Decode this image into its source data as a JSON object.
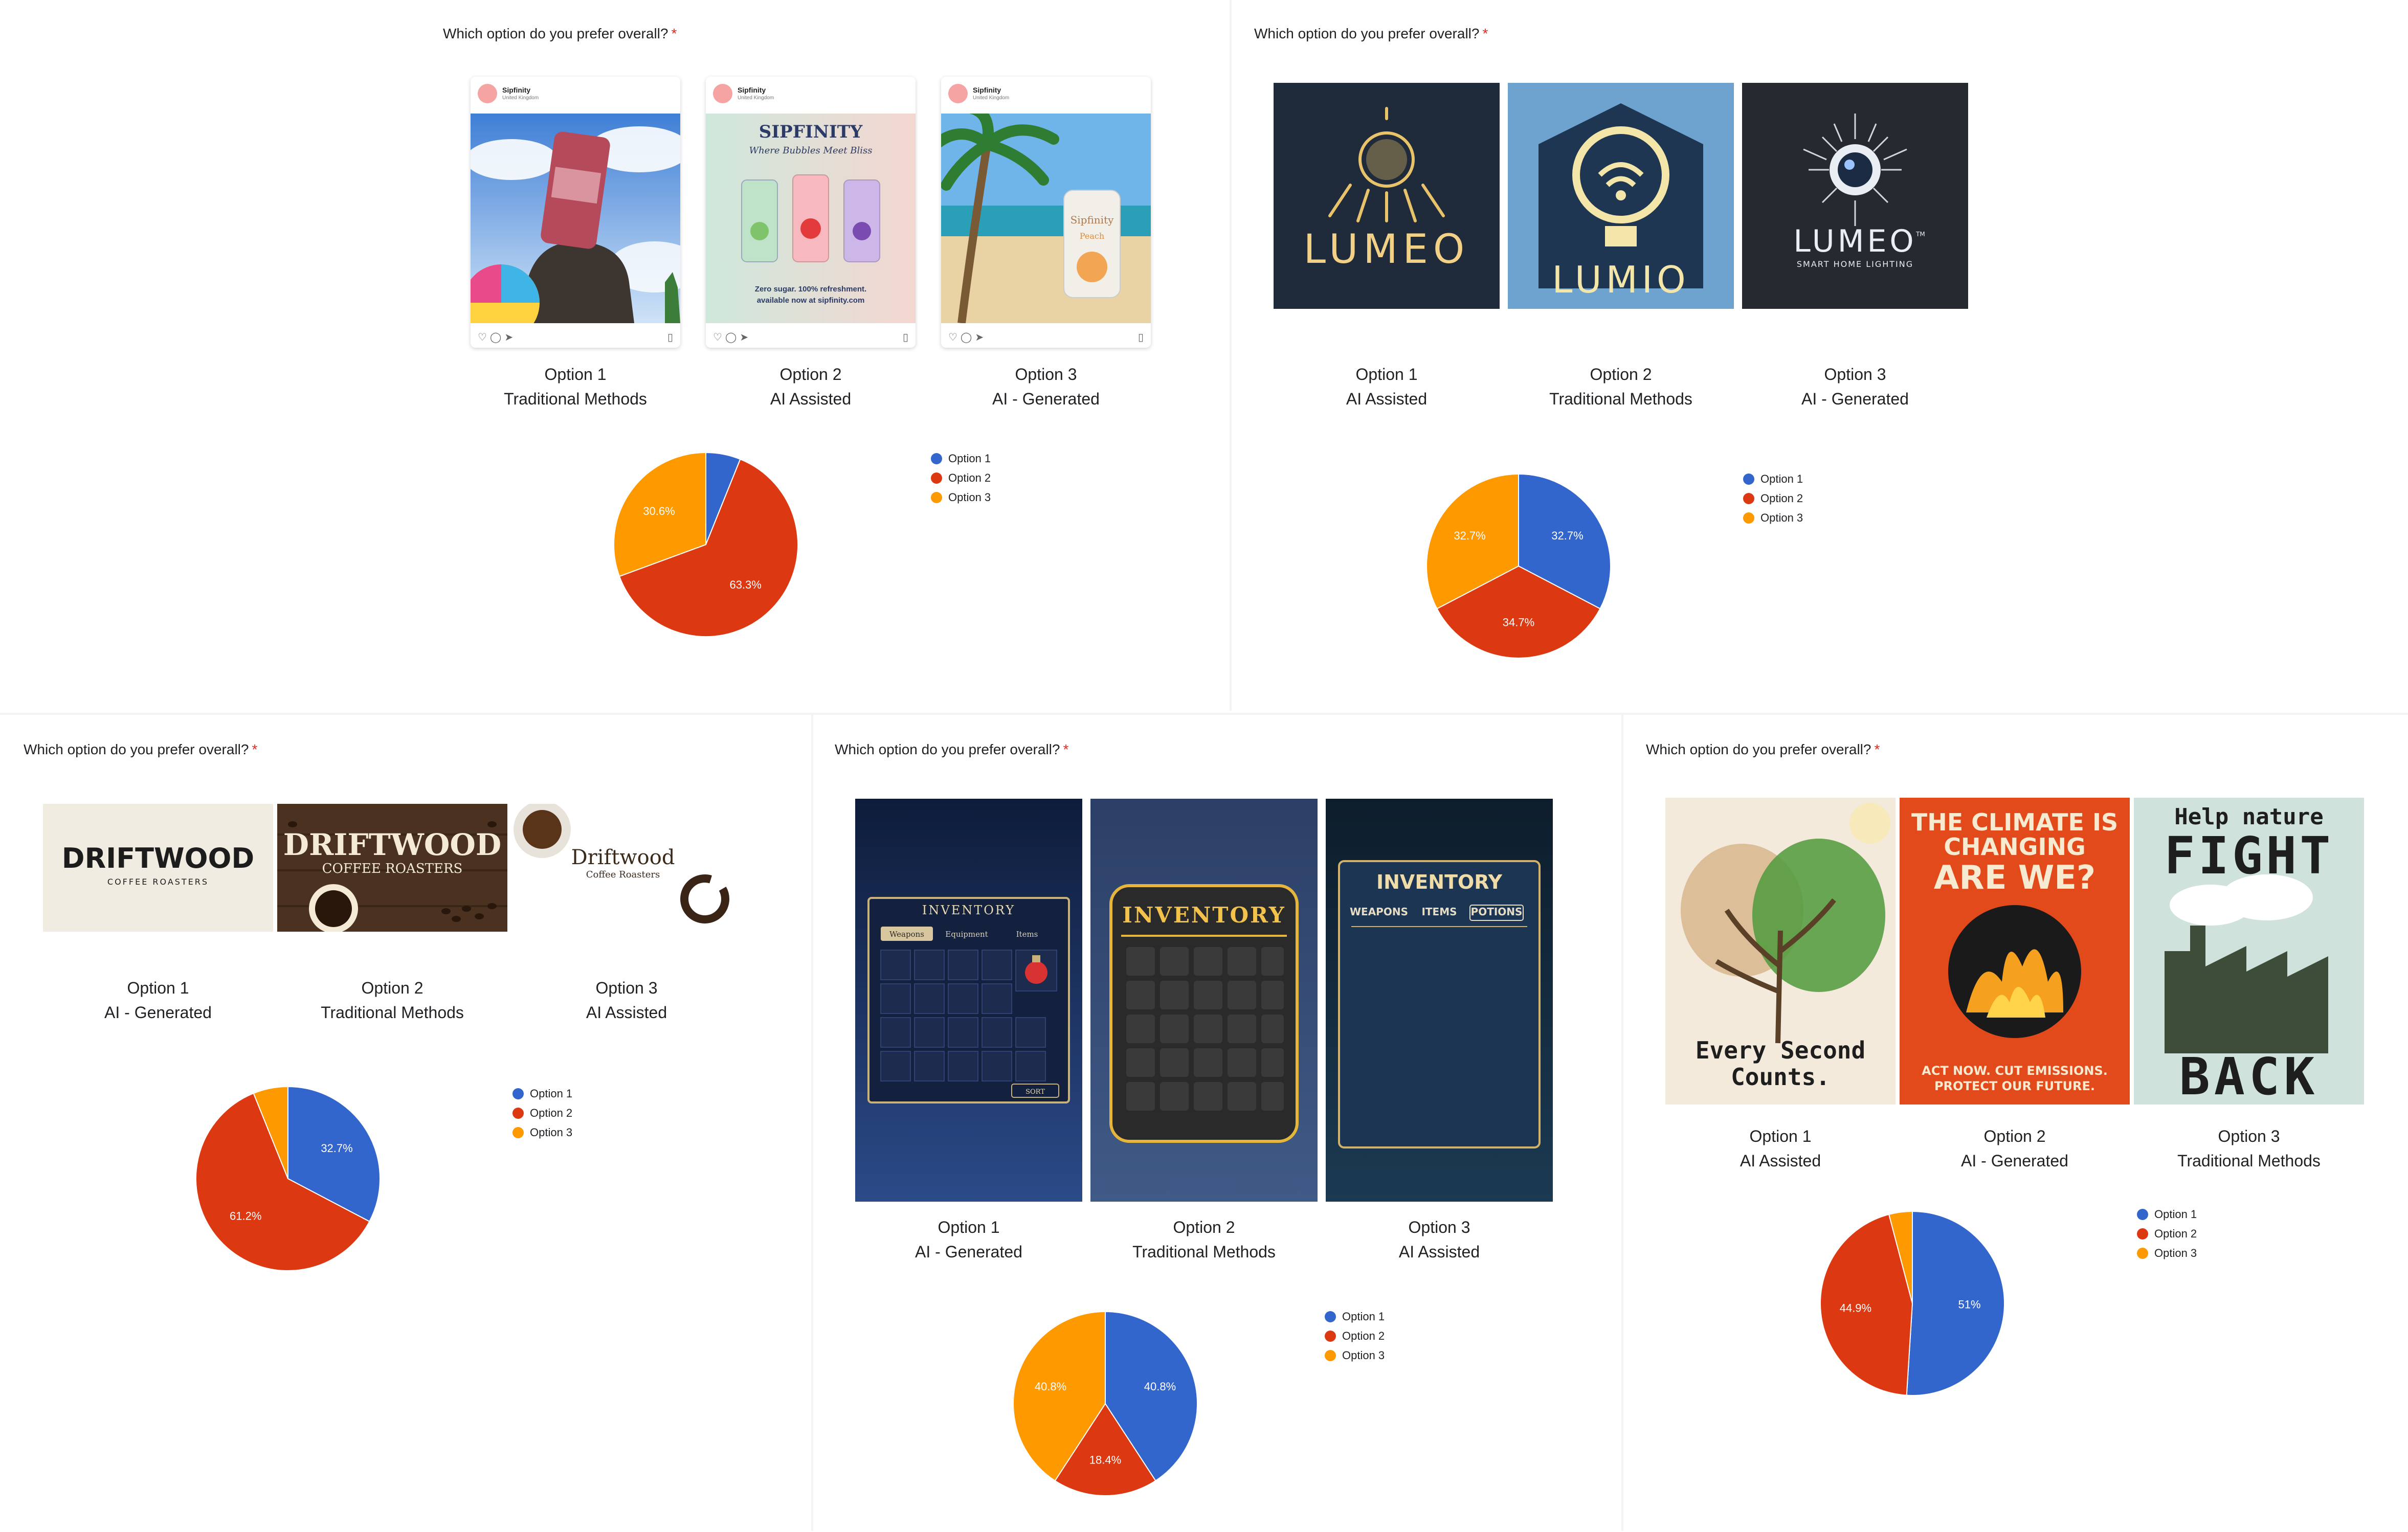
{
  "question_text": "Which option do you prefer overall?",
  "required_mark": "*",
  "colors": {
    "option1": "#3366cc",
    "option2": "#dc3912",
    "option3": "#ff9900",
    "required": "#d93025"
  },
  "legend_labels": [
    "Option 1",
    "Option 2",
    "Option 3"
  ],
  "panels": [
    {
      "options": [
        {
          "name": "Option 1",
          "method": "Traditional Methods"
        },
        {
          "name": "Option 2",
          "method": "AI Assisted"
        },
        {
          "name": "Option 3",
          "method": "AI - Generated"
        }
      ],
      "images": [
        {
          "kind": "instagram-post",
          "brand": "Sipfinity",
          "sub": "United Kingdom",
          "scene": "can-on-rock-sky"
        },
        {
          "kind": "instagram-post",
          "brand": "Sipfinity",
          "sub": "United Kingdom",
          "headline": "SIPFINITY",
          "tagline": "Where Bubbles Meet Bliss",
          "footer1": "Zero sugar. 100% refreshment.",
          "footer2": "available now at sipfinity.com"
        },
        {
          "kind": "instagram-post",
          "brand": "Sipfinity",
          "sub": "United Kingdom",
          "can_text1": "Sipfinity",
          "can_text2": "Peach"
        }
      ]
    },
    {
      "options": [
        {
          "name": "Option 1",
          "method": "AI Assisted"
        },
        {
          "name": "Option 2",
          "method": "Traditional Methods"
        },
        {
          "name": "Option 3",
          "method": "AI - Generated"
        }
      ],
      "images": [
        {
          "kind": "logo",
          "text": "LUMEO"
        },
        {
          "kind": "logo",
          "text": "LUMIO"
        },
        {
          "kind": "logo",
          "text": "LUMEO",
          "sub": "SMART HOME LIGHTING",
          "tm": "TM"
        }
      ]
    },
    {
      "options": [
        {
          "name": "Option 1",
          "method": "AI - Generated"
        },
        {
          "name": "Option 2",
          "method": "Traditional Methods"
        },
        {
          "name": "Option 3",
          "method": "AI Assisted"
        }
      ],
      "images": [
        {
          "kind": "logo",
          "text": "DRIFTWOOD",
          "sub": "COFFEE ROASTERS"
        },
        {
          "kind": "logo",
          "text": "DRIFTWOOD",
          "sub": "COFFEE ROASTERS"
        },
        {
          "kind": "logo",
          "text": "Driftwood",
          "sub": "Coffee Roasters"
        }
      ]
    },
    {
      "options": [
        {
          "name": "Option 1",
          "method": "AI - Generated"
        },
        {
          "name": "Option 2",
          "method": "Traditional Methods"
        },
        {
          "name": "Option 3",
          "method": "AI Assisted"
        }
      ],
      "images": [
        {
          "kind": "game-ui",
          "title": "INVENTORY",
          "tabs": [
            "Weapons",
            "Equipment",
            "Items"
          ],
          "button": "SORT"
        },
        {
          "kind": "game-ui",
          "title": "INVENTORY"
        },
        {
          "kind": "game-ui",
          "title": "INVENTORY",
          "tabs": [
            "WEAPONS",
            "ITEMS",
            "POTIONS"
          ]
        }
      ]
    },
    {
      "options": [
        {
          "name": "Option 1",
          "method": "AI Assisted"
        },
        {
          "name": "Option 2",
          "method": "AI - Generated"
        },
        {
          "name": "Option 3",
          "method": "Traditional Methods"
        }
      ],
      "images": [
        {
          "kind": "poster",
          "line1": "Every Second",
          "line2": "Counts."
        },
        {
          "kind": "poster",
          "line1": "THE CLIMATE IS",
          "line2": "CHANGING",
          "line3": "ARE WE?",
          "foot1": "ACT NOW. CUT EMISSIONS.",
          "foot2": "PROTECT OUR FUTURE."
        },
        {
          "kind": "poster",
          "line1": "Help nature",
          "line2": "FIGHT",
          "line3": "BACK"
        }
      ]
    }
  ],
  "chart_data": [
    {
      "type": "pie",
      "categories": [
        "Option 1",
        "Option 2",
        "Option 3"
      ],
      "values": [
        6.1,
        63.3,
        30.6
      ],
      "labels": [
        "",
        "63.3%",
        "30.6%"
      ],
      "legend": "right"
    },
    {
      "type": "pie",
      "categories": [
        "Option 1",
        "Option 2",
        "Option 3"
      ],
      "values": [
        32.7,
        34.7,
        32.7
      ],
      "labels": [
        "32.7%",
        "34.7%",
        "32.7%"
      ],
      "legend": "right"
    },
    {
      "type": "pie",
      "categories": [
        "Option 1",
        "Option 2",
        "Option 3"
      ],
      "values": [
        32.7,
        61.2,
        6.1
      ],
      "labels": [
        "32.7%",
        "61.2%",
        ""
      ],
      "legend": "right"
    },
    {
      "type": "pie",
      "categories": [
        "Option 1",
        "Option 2",
        "Option 3"
      ],
      "values": [
        40.8,
        18.4,
        40.8
      ],
      "labels": [
        "40.8%",
        "18.4%",
        "40.8%"
      ],
      "legend": "right"
    },
    {
      "type": "pie",
      "categories": [
        "Option 1",
        "Option 2",
        "Option 3"
      ],
      "values": [
        51,
        44.9,
        4.1
      ],
      "labels": [
        "51%",
        "44.9%",
        ""
      ],
      "legend": "right"
    }
  ]
}
